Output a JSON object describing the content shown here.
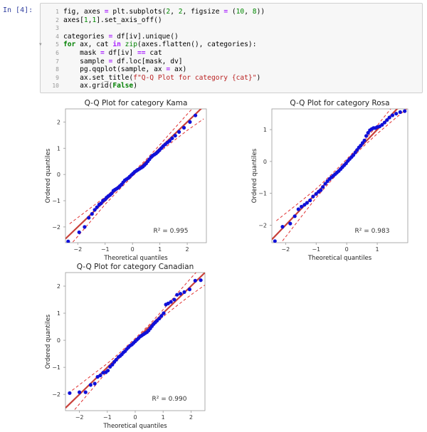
{
  "cell": {
    "prompt": "In [4]:",
    "lines": [
      {
        "n": "1",
        "html": "fig, axes <span class=\"op\">=</span> plt.subplots(<span class=\"num\">2</span>, <span class=\"num\">2</span>, figsize <span class=\"op\">=</span> (<span class=\"num\">10</span>, <span class=\"num\">8</span>))"
      },
      {
        "n": "2",
        "html": "axes[<span class=\"num\">1</span>,<span class=\"num\">1</span>].set_axis_off()"
      },
      {
        "n": "3",
        "html": ""
      },
      {
        "n": "4",
        "html": "categories <span class=\"op\">=</span> df[iv].unique()"
      },
      {
        "n": "5",
        "html": "<span class=\"kw\">for</span> ax, cat <span class=\"op\">in</span> <span class=\"bi\">zip</span>(axes.flatten(), categories):",
        "fold": true
      },
      {
        "n": "6",
        "html": "    mask <span class=\"op\">=</span> df[iv] <span class=\"op\">==</span> cat"
      },
      {
        "n": "7",
        "html": "    sample <span class=\"op\">=</span> df.loc[mask, dv]"
      },
      {
        "n": "8",
        "html": "    pg.qqplot(sample, ax <span class=\"op\">=</span> ax)"
      },
      {
        "n": "9",
        "html": "    ax.set_title(<span class=\"str\">f\"Q-Q Plot for category {cat}\"</span>)"
      },
      {
        "n": "10",
        "html": "    ax.grid(<span class=\"kw\">False</span>)"
      }
    ]
  },
  "colors": {
    "point": "#1010d8",
    "fit": "#c8413a",
    "ci": "#e03030",
    "axis": "#999999",
    "ref": "#7a7a7a"
  },
  "chart_data": [
    {
      "type": "scatter",
      "title": "Q-Q Plot for category Kama",
      "xlabel": "Theoretical quantiles",
      "ylabel": "Ordered quantiles",
      "r2": "R² = 0.995",
      "xlim": [
        -2.45,
        2.7
      ],
      "ylim": [
        -2.6,
        2.5
      ],
      "xticks": [
        -2,
        -1,
        0,
        1,
        2
      ],
      "yticks": [
        -2,
        -1,
        0,
        1,
        2
      ],
      "fit": [
        1.0,
        0.0
      ],
      "points": [
        [
          -2.35,
          -2.55
        ],
        [
          -1.95,
          -2.2
        ],
        [
          -1.75,
          -2.0
        ],
        [
          -1.6,
          -1.65
        ],
        [
          -1.48,
          -1.5
        ],
        [
          -1.38,
          -1.35
        ],
        [
          -1.3,
          -1.25
        ],
        [
          -1.22,
          -1.15
        ],
        [
          -1.15,
          -1.1
        ],
        [
          -1.08,
          -1.0
        ],
        [
          -1.0,
          -0.95
        ],
        [
          -0.95,
          -0.88
        ],
        [
          -0.88,
          -0.82
        ],
        [
          -0.82,
          -0.78
        ],
        [
          -0.76,
          -0.72
        ],
        [
          -0.7,
          -0.62
        ],
        [
          -0.64,
          -0.58
        ],
        [
          -0.58,
          -0.54
        ],
        [
          -0.52,
          -0.5
        ],
        [
          -0.46,
          -0.44
        ],
        [
          -0.4,
          -0.38
        ],
        [
          -0.34,
          -0.3
        ],
        [
          -0.28,
          -0.22
        ],
        [
          -0.22,
          -0.18
        ],
        [
          -0.16,
          -0.14
        ],
        [
          -0.1,
          -0.08
        ],
        [
          -0.04,
          -0.02
        ],
        [
          0.02,
          0.04
        ],
        [
          0.08,
          0.1
        ],
        [
          0.14,
          0.14
        ],
        [
          0.2,
          0.18
        ],
        [
          0.26,
          0.22
        ],
        [
          0.32,
          0.26
        ],
        [
          0.38,
          0.3
        ],
        [
          0.44,
          0.36
        ],
        [
          0.5,
          0.42
        ],
        [
          0.56,
          0.5
        ],
        [
          0.62,
          0.58
        ],
        [
          0.68,
          0.66
        ],
        [
          0.74,
          0.72
        ],
        [
          0.8,
          0.76
        ],
        [
          0.86,
          0.8
        ],
        [
          0.92,
          0.86
        ],
        [
          0.98,
          0.92
        ],
        [
          1.05,
          1.0
        ],
        [
          1.12,
          1.08
        ],
        [
          1.2,
          1.15
        ],
        [
          1.28,
          1.22
        ],
        [
          1.36,
          1.28
        ],
        [
          1.45,
          1.38
        ],
        [
          1.56,
          1.48
        ],
        [
          1.7,
          1.62
        ],
        [
          1.88,
          1.78
        ],
        [
          2.1,
          2.0
        ],
        [
          2.3,
          2.25
        ]
      ],
      "ci_lower": [
        [
          -2.3,
          -2.72
        ],
        [
          -1.5,
          -1.75
        ],
        [
          -1.0,
          -1.14
        ],
        [
          -0.5,
          -0.59
        ],
        [
          0,
          -0.07
        ],
        [
          0.5,
          0.43
        ],
        [
          1.0,
          0.87
        ],
        [
          1.5,
          1.28
        ],
        [
          2.0,
          1.68
        ],
        [
          2.6,
          2.12
        ]
      ],
      "ci_upper": [
        [
          -2.3,
          -1.88
        ],
        [
          -1.5,
          -1.25
        ],
        [
          -1.0,
          -0.86
        ],
        [
          -0.5,
          -0.41
        ],
        [
          0,
          0.07
        ],
        [
          0.5,
          0.57
        ],
        [
          1.0,
          1.13
        ],
        [
          1.5,
          1.72
        ],
        [
          2.0,
          2.3
        ],
        [
          2.6,
          2.98
        ]
      ]
    },
    {
      "type": "scatter",
      "title": "Q-Q Plot for category Rosa",
      "xlabel": "Theoretical quantiles",
      "ylabel": "Ordered quantiles",
      "r2": "R² = 0.983",
      "xlim": [
        -2.45,
        2.0
      ],
      "ylim": [
        -2.55,
        1.65
      ],
      "xticks": [
        -2,
        -1,
        0,
        1
      ],
      "yticks": [
        -2,
        -1,
        0,
        1
      ],
      "fit": [
        1.0,
        0.0
      ],
      "points": [
        [
          -2.35,
          -2.5
        ],
        [
          -2.1,
          -2.05
        ],
        [
          -1.85,
          -1.95
        ],
        [
          -1.7,
          -1.72
        ],
        [
          -1.58,
          -1.5
        ],
        [
          -1.48,
          -1.42
        ],
        [
          -1.38,
          -1.36
        ],
        [
          -1.3,
          -1.3
        ],
        [
          -1.2,
          -1.22
        ],
        [
          -1.1,
          -1.1
        ],
        [
          -1.0,
          -1.02
        ],
        [
          -0.92,
          -0.95
        ],
        [
          -0.85,
          -0.9
        ],
        [
          -0.78,
          -0.8
        ],
        [
          -0.7,
          -0.7
        ],
        [
          -0.63,
          -0.62
        ],
        [
          -0.56,
          -0.55
        ],
        [
          -0.5,
          -0.5
        ],
        [
          -0.44,
          -0.45
        ],
        [
          -0.38,
          -0.4
        ],
        [
          -0.32,
          -0.35
        ],
        [
          -0.26,
          -0.3
        ],
        [
          -0.2,
          -0.24
        ],
        [
          -0.14,
          -0.18
        ],
        [
          -0.08,
          -0.12
        ],
        [
          -0.02,
          -0.06
        ],
        [
          0.04,
          0.02
        ],
        [
          0.1,
          0.08
        ],
        [
          0.16,
          0.14
        ],
        [
          0.22,
          0.2
        ],
        [
          0.28,
          0.28
        ],
        [
          0.34,
          0.36
        ],
        [
          0.4,
          0.44
        ],
        [
          0.46,
          0.5
        ],
        [
          0.52,
          0.58
        ],
        [
          0.58,
          0.66
        ],
        [
          0.64,
          0.8
        ],
        [
          0.7,
          0.9
        ],
        [
          0.76,
          0.98
        ],
        [
          0.82,
          1.02
        ],
        [
          0.88,
          1.05
        ],
        [
          0.94,
          1.05
        ],
        [
          1.0,
          1.08
        ],
        [
          1.08,
          1.1
        ],
        [
          1.16,
          1.15
        ],
        [
          1.24,
          1.22
        ],
        [
          1.32,
          1.3
        ],
        [
          1.4,
          1.38
        ],
        [
          1.5,
          1.45
        ],
        [
          1.62,
          1.5
        ],
        [
          1.75,
          1.55
        ],
        [
          1.9,
          1.58
        ]
      ],
      "ci_lower": [
        [
          -2.3,
          -2.74
        ],
        [
          -1.5,
          -1.75
        ],
        [
          -1.0,
          -1.14
        ],
        [
          -0.5,
          -0.59
        ],
        [
          0,
          -0.07
        ],
        [
          0.5,
          0.43
        ],
        [
          1.0,
          0.87
        ],
        [
          1.5,
          1.28
        ],
        [
          2.0,
          1.68
        ]
      ],
      "ci_upper": [
        [
          -2.3,
          -1.86
        ],
        [
          -1.5,
          -1.25
        ],
        [
          -1.0,
          -0.86
        ],
        [
          -0.5,
          -0.41
        ],
        [
          0,
          0.07
        ],
        [
          0.5,
          0.57
        ],
        [
          1.0,
          1.13
        ],
        [
          1.5,
          1.72
        ],
        [
          2.0,
          2.32
        ]
      ]
    },
    {
      "type": "scatter",
      "title": "Q-Q Plot for category Canadian",
      "xlabel": "Theoretical quantiles",
      "ylabel": "Ordered quantiles",
      "r2": "R² = 0.990",
      "xlim": [
        -2.5,
        2.5
      ],
      "ylim": [
        -2.6,
        2.5
      ],
      "xticks": [
        -2,
        -1,
        0,
        1,
        2
      ],
      "yticks": [
        -2,
        -1,
        0,
        1,
        2
      ],
      "fit": [
        1.0,
        0.0
      ],
      "points": [
        [
          -2.35,
          -1.95
        ],
        [
          -2.0,
          -1.92
        ],
        [
          -1.78,
          -1.92
        ],
        [
          -1.6,
          -1.65
        ],
        [
          -1.45,
          -1.6
        ],
        [
          -1.35,
          -1.35
        ],
        [
          -1.25,
          -1.3
        ],
        [
          -1.15,
          -1.2
        ],
        [
          -1.05,
          -1.18
        ],
        [
          -0.98,
          -1.12
        ],
        [
          -0.9,
          -0.98
        ],
        [
          -0.82,
          -0.9
        ],
        [
          -0.75,
          -0.8
        ],
        [
          -0.68,
          -0.72
        ],
        [
          -0.6,
          -0.62
        ],
        [
          -0.54,
          -0.58
        ],
        [
          -0.48,
          -0.52
        ],
        [
          -0.42,
          -0.45
        ],
        [
          -0.36,
          -0.4
        ],
        [
          -0.3,
          -0.32
        ],
        [
          -0.24,
          -0.26
        ],
        [
          -0.18,
          -0.2
        ],
        [
          -0.12,
          -0.16
        ],
        [
          -0.06,
          -0.1
        ],
        [
          0.0,
          -0.04
        ],
        [
          0.06,
          0.02
        ],
        [
          0.12,
          0.08
        ],
        [
          0.18,
          0.14
        ],
        [
          0.24,
          0.18
        ],
        [
          0.3,
          0.22
        ],
        [
          0.36,
          0.26
        ],
        [
          0.42,
          0.3
        ],
        [
          0.48,
          0.36
        ],
        [
          0.54,
          0.44
        ],
        [
          0.6,
          0.52
        ],
        [
          0.66,
          0.6
        ],
        [
          0.72,
          0.66
        ],
        [
          0.78,
          0.72
        ],
        [
          0.86,
          0.8
        ],
        [
          0.94,
          0.9
        ],
        [
          1.02,
          1.0
        ],
        [
          1.1,
          1.32
        ],
        [
          1.18,
          1.36
        ],
        [
          1.28,
          1.42
        ],
        [
          1.4,
          1.5
        ],
        [
          1.5,
          1.68
        ],
        [
          1.62,
          1.72
        ],
        [
          1.76,
          1.78
        ],
        [
          1.95,
          1.88
        ],
        [
          2.15,
          2.2
        ],
        [
          2.35,
          2.22
        ]
      ],
      "ci_lower": [
        [
          -2.4,
          -2.84
        ],
        [
          -1.5,
          -1.75
        ],
        [
          -1.0,
          -1.14
        ],
        [
          -0.5,
          -0.59
        ],
        [
          0,
          -0.07
        ],
        [
          0.5,
          0.43
        ],
        [
          1.0,
          0.87
        ],
        [
          1.5,
          1.28
        ],
        [
          2.0,
          1.68
        ],
        [
          2.5,
          2.04
        ]
      ],
      "ci_upper": [
        [
          -2.4,
          -1.96
        ],
        [
          -1.5,
          -1.25
        ],
        [
          -1.0,
          -0.86
        ],
        [
          -0.5,
          -0.41
        ],
        [
          0,
          0.07
        ],
        [
          0.5,
          0.57
        ],
        [
          1.0,
          1.13
        ],
        [
          1.5,
          1.72
        ],
        [
          2.0,
          2.3
        ],
        [
          2.5,
          2.86
        ]
      ]
    }
  ]
}
